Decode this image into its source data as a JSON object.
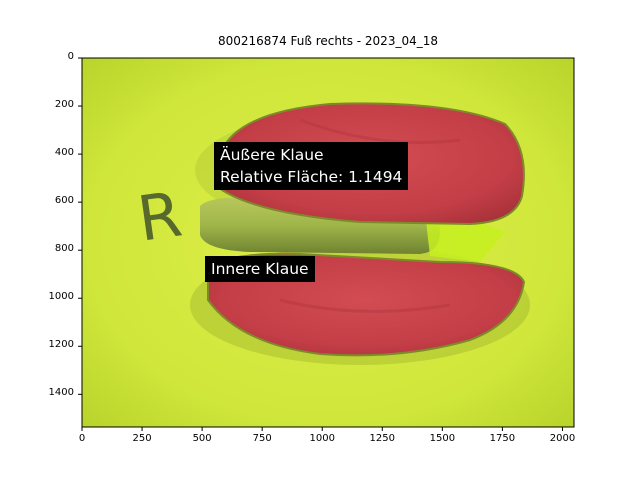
{
  "figure": {
    "title": "800216874 Fuß rechts - 2023_04_18",
    "image_description_icon": "hoof-sole-photo",
    "colors": {
      "background_mat": "#d4ec3c",
      "claw_red": "#c8434a",
      "label_box": "#000000",
      "label_text": "#ffffff"
    }
  },
  "axes": {
    "x_ticks": [
      "0",
      "250",
      "500",
      "750",
      "1000",
      "1250",
      "1500",
      "1750",
      "2000"
    ],
    "y_ticks": [
      "0",
      "200",
      "400",
      "600",
      "800",
      "1000",
      "1200",
      "1400"
    ],
    "x_range": [
      0,
      2048
    ],
    "y_range": [
      1536,
      0
    ]
  },
  "annotations": {
    "outer_claw_line1": "Äußere Klaue",
    "outer_claw_line2": "Relative Fläche: 1.1494",
    "inner_claw": "Innere Klaue"
  }
}
